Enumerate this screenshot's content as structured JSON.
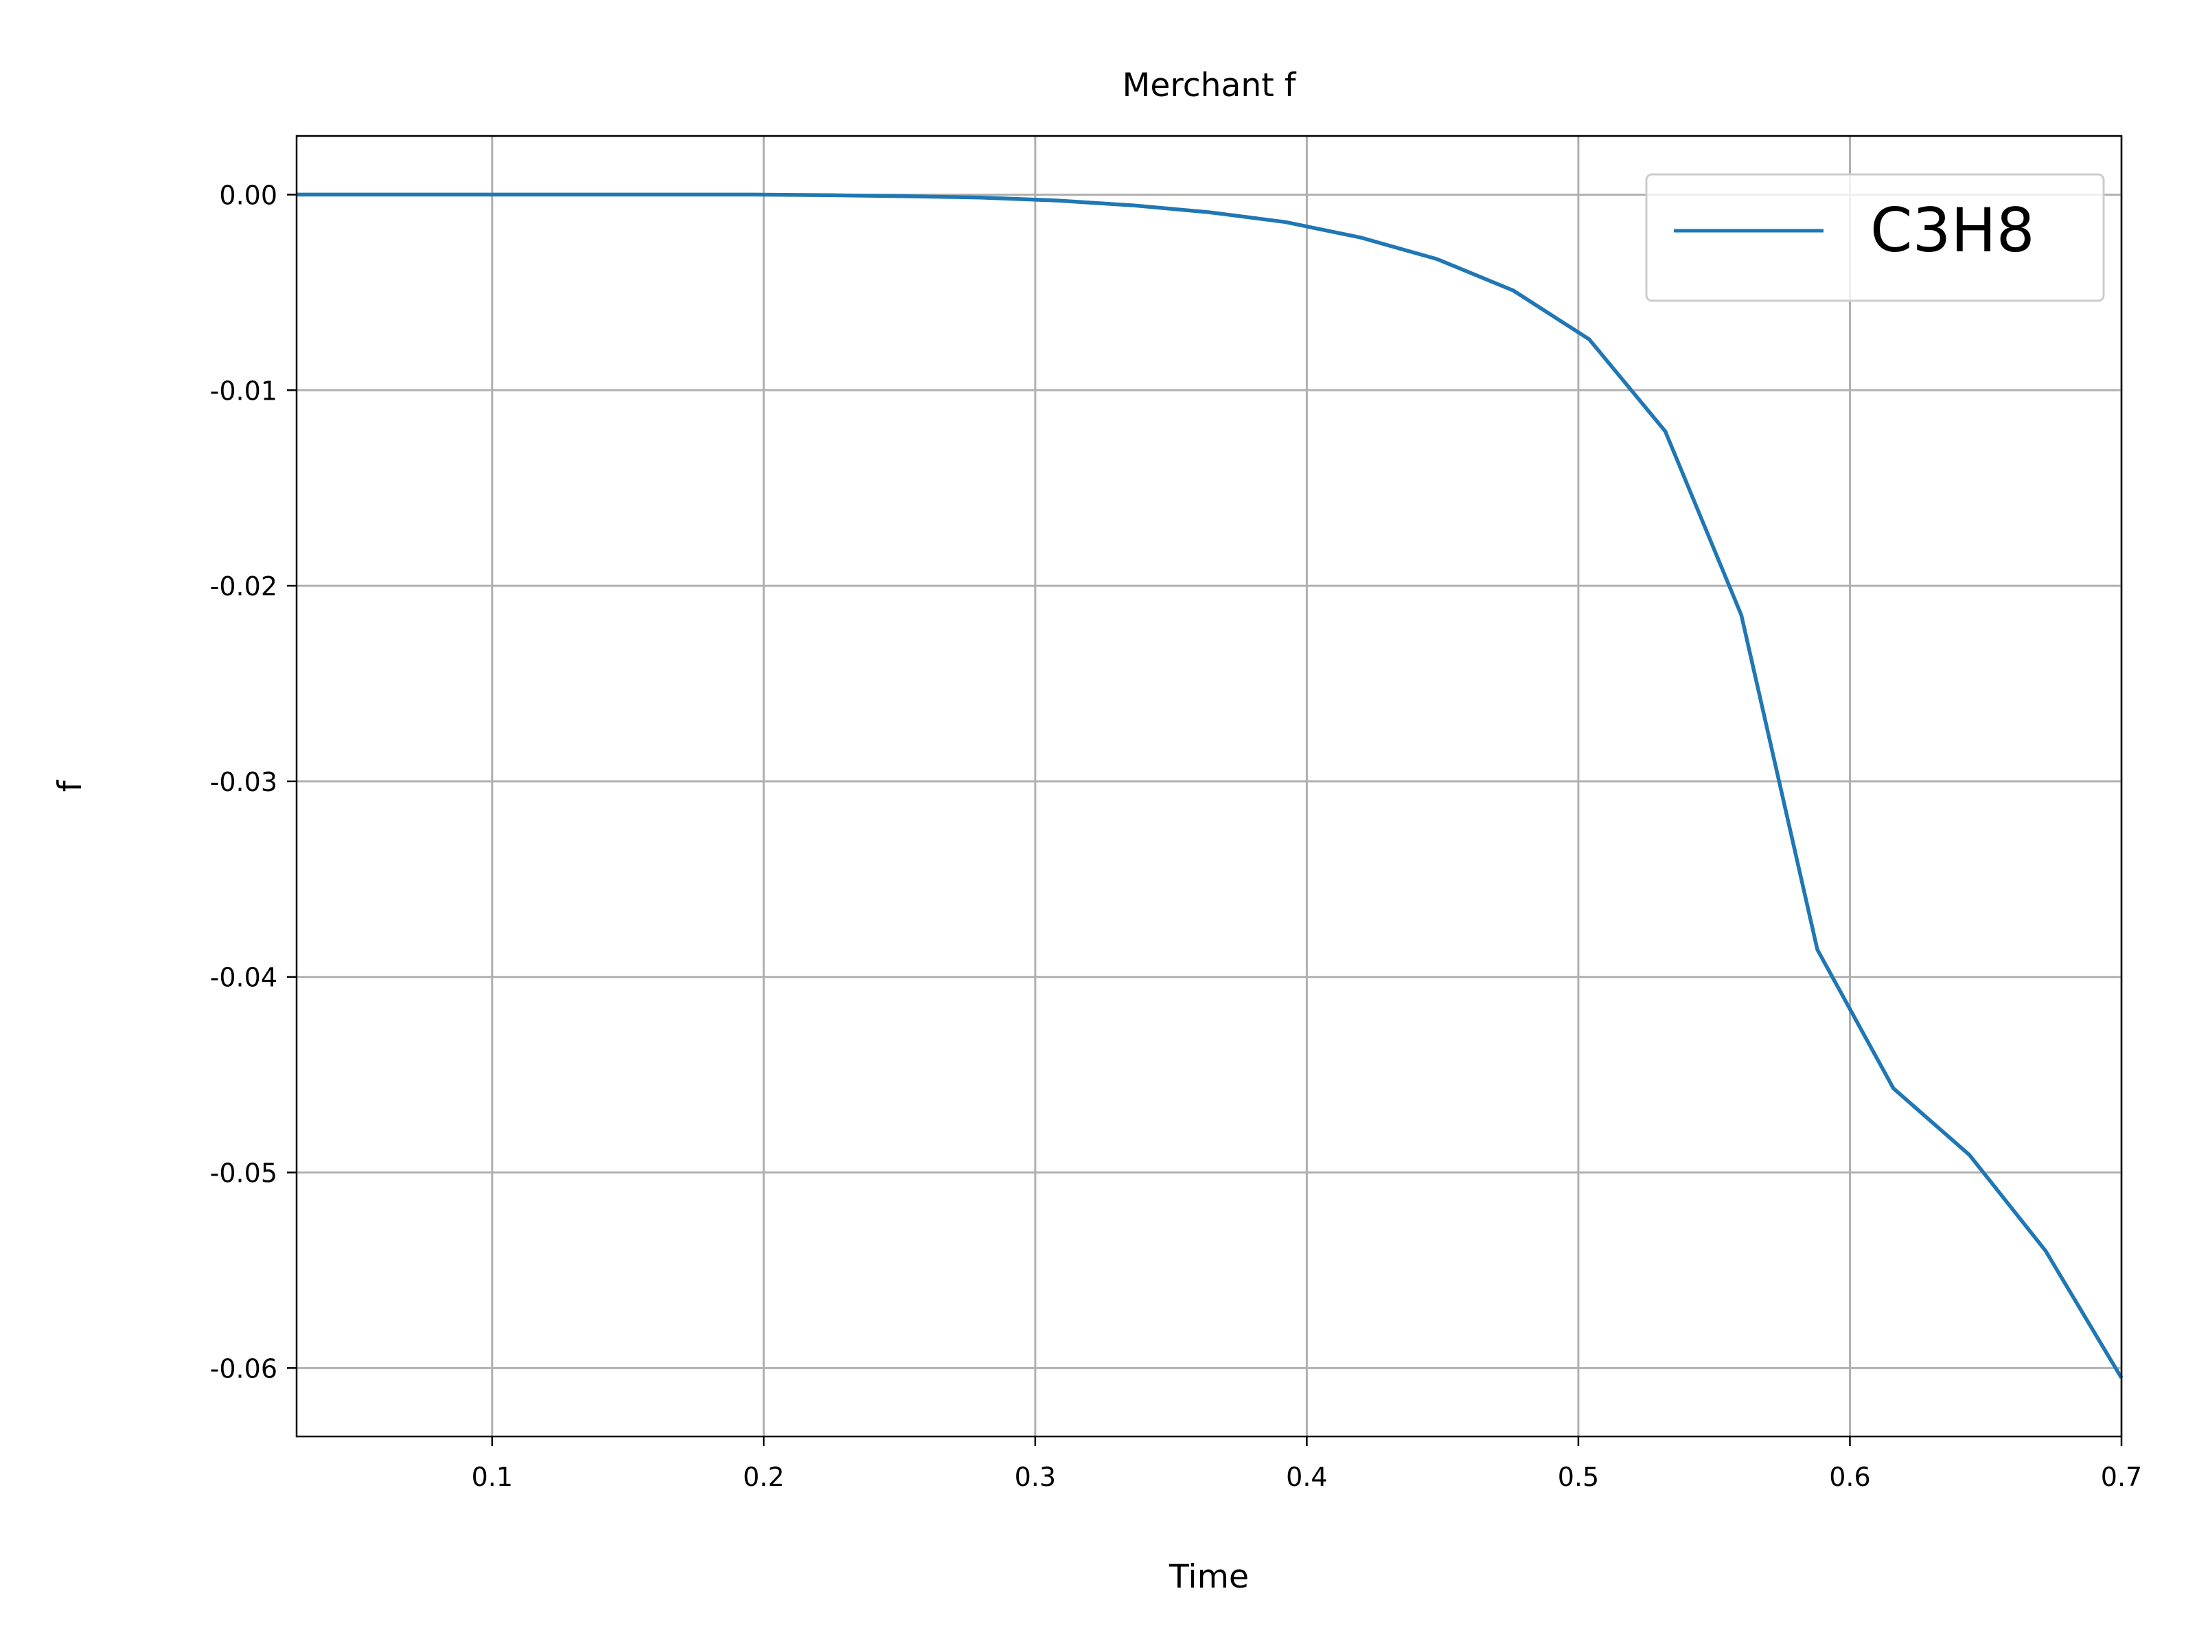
{
  "chart_data": {
    "type": "line",
    "title": "Merchant f",
    "xlabel": "Time",
    "ylabel": "f",
    "xlim": [
      0.028,
      0.7
    ],
    "ylim": [
      -0.0635,
      0.003
    ],
    "grid": true,
    "legend_position": "top-right",
    "x_ticks": [
      0.1,
      0.2,
      0.3,
      0.4,
      0.5,
      0.6,
      0.7
    ],
    "x_tick_labels": [
      "0.1",
      "0.2",
      "0.3",
      "0.4",
      "0.5",
      "0.6",
      "0.7"
    ],
    "y_ticks": [
      0.0,
      -0.01,
      -0.02,
      -0.03,
      -0.04,
      -0.05,
      -0.06
    ],
    "y_tick_labels": [
      "0.00",
      "-0.01",
      "-0.02",
      "-0.03",
      "-0.04",
      "-0.05",
      "-0.06"
    ],
    "series": [
      {
        "name": "C3H8",
        "color": "#1f77b4",
        "x": [
          0.028,
          0.056,
          0.084,
          0.112,
          0.14,
          0.168,
          0.196,
          0.224,
          0.252,
          0.28,
          0.308,
          0.336,
          0.364,
          0.392,
          0.42,
          0.448,
          0.476,
          0.504,
          0.532,
          0.56,
          0.588,
          0.616,
          0.644,
          0.672,
          0.7
        ],
        "y": [
          0.0,
          0.0,
          0.0,
          0.0,
          0.0,
          0.0,
          0.0,
          -3e-05,
          -8e-05,
          -0.00015,
          -0.0003,
          -0.00055,
          -0.0009,
          -0.0014,
          -0.0022,
          -0.0033,
          -0.0049,
          -0.0074,
          -0.0121,
          -0.0215,
          -0.0386,
          -0.0457,
          -0.0491,
          -0.054,
          -0.0605
        ]
      }
    ]
  }
}
